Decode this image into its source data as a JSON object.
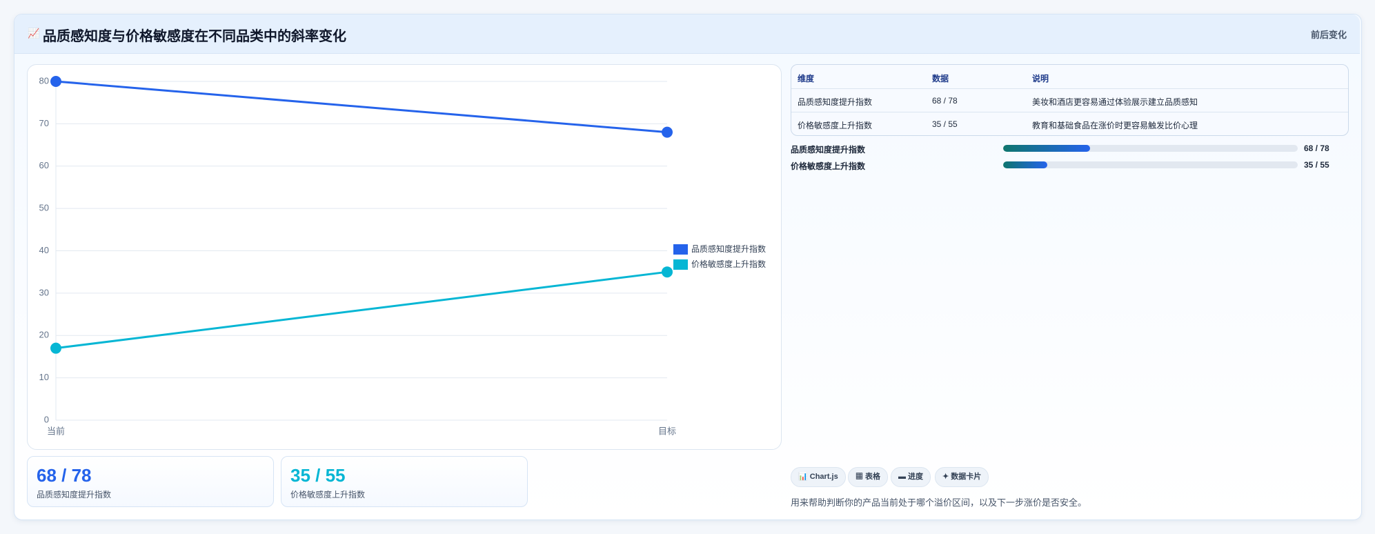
{
  "header": {
    "title": "品质感知度与价格敏感度在不同品类中的斜率变化",
    "icon": "📈",
    "badge": "前后变化"
  },
  "chart_data": {
    "type": "line",
    "categories": [
      "当前",
      "目标"
    ],
    "series": [
      {
        "name": "品质感知度提升指数",
        "color": "#2563eb",
        "values": [
          80,
          68
        ]
      },
      {
        "name": "价格敏感度上升指数",
        "color": "#06b6d4",
        "values": [
          17,
          35
        ]
      }
    ],
    "ylim": [
      0,
      80
    ],
    "yticks": [
      0,
      10,
      20,
      30,
      40,
      50,
      60,
      70,
      80
    ],
    "grid": true,
    "legend": "right"
  },
  "table": {
    "columns": [
      "维度",
      "数据",
      "说明"
    ],
    "rows": [
      [
        "品质感知度提升指数",
        "68 / 78",
        "美妆和酒店更容易通过体验展示建立品质感知"
      ],
      [
        "价格敏感度上升指数",
        "35 / 55",
        "教育和基础食品在涨价时更容易触发比价心理"
      ]
    ]
  },
  "progress": [
    {
      "label": "品质感知度提升指数",
      "value": 29.5,
      "value_label": "68 / 78"
    },
    {
      "label": "价格敏感度上升指数",
      "value": 15,
      "value_label": "35 / 55"
    }
  ],
  "cards": [
    {
      "value": "68 / 78",
      "label": "品质感知度提升指数",
      "color": "#2563eb"
    },
    {
      "value": "35 / 55",
      "label": "价格敏感度上升指数",
      "color": "#06b6d4"
    }
  ],
  "tags": [
    "📊 Chart.js",
    "▦ 表格",
    "▬ 进度",
    "✦ 数据卡片"
  ],
  "footer": "用来帮助判断你的产品当前处于哪个溢价区间，以及下一步涨价是否安全。"
}
